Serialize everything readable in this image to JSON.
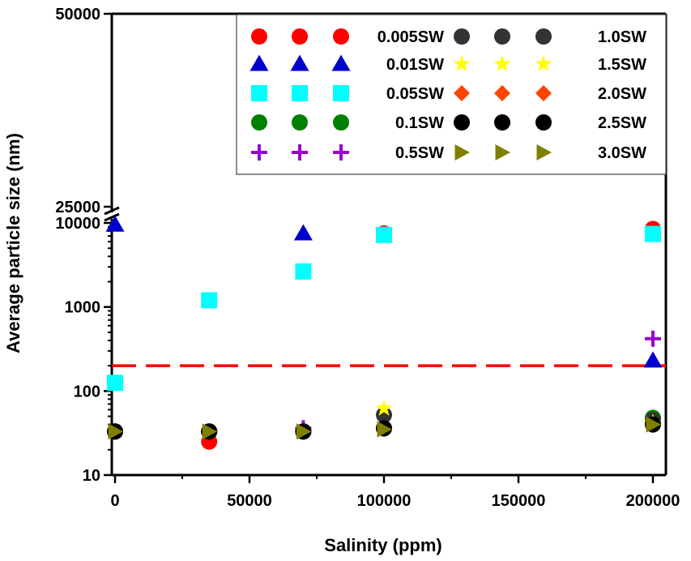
{
  "chart_data": {
    "type": "scatter",
    "xlabel": "Salinity (ppm)",
    "ylabel": "Average particle size (nm)",
    "x_ticks": [
      "0",
      "50000",
      "100000",
      "150000",
      "200000"
    ],
    "xlim": [
      0,
      200000
    ],
    "y_scale": "log with broken axis",
    "y_ticks_lower": [
      "10",
      "100",
      "1000",
      "10000"
    ],
    "y_ticks_upper": [
      "25000",
      "50000"
    ],
    "ylim_lower": [
      10,
      10000
    ],
    "ylim_upper": [
      25000,
      50000
    ],
    "reference_line": {
      "y": 200,
      "style": "dashed",
      "color": "#ff0000"
    },
    "grid": false,
    "legend_position": "top-right",
    "series": [
      {
        "name": "0.005SW",
        "marker": "circle",
        "color": "#ff0000",
        "points": [
          {
            "x": 35000,
            "y": 25
          },
          {
            "x": 100000,
            "y": 7500
          },
          {
            "x": 200000,
            "y": 8500
          }
        ]
      },
      {
        "name": "0.01SW",
        "marker": "triangle",
        "color": "#0000cc",
        "points": [
          {
            "x": 0,
            "y": 9500
          },
          {
            "x": 70000,
            "y": 7500
          },
          {
            "x": 200000,
            "y": 230
          }
        ]
      },
      {
        "name": "0.05SW",
        "marker": "square",
        "color": "#00ffff",
        "points": [
          {
            "x": 0,
            "y": 125
          },
          {
            "x": 35000,
            "y": 1200
          },
          {
            "x": 70000,
            "y": 2650
          },
          {
            "x": 100000,
            "y": 7200
          },
          {
            "x": 200000,
            "y": 7400
          }
        ]
      },
      {
        "name": "0.1SW",
        "marker": "circle",
        "color": "#008000",
        "points": [
          {
            "x": 0,
            "y": 33
          },
          {
            "x": 35000,
            "y": 33
          },
          {
            "x": 70000,
            "y": 33
          },
          {
            "x": 100000,
            "y": 36
          },
          {
            "x": 200000,
            "y": 48
          }
        ]
      },
      {
        "name": "0.5SW",
        "marker": "plus",
        "color": "#9900cc",
        "points": [
          {
            "x": 0,
            "y": 33
          },
          {
            "x": 35000,
            "y": 33
          },
          {
            "x": 70000,
            "y": 36
          },
          {
            "x": 100000,
            "y": 36
          },
          {
            "x": 200000,
            "y": 420
          }
        ]
      },
      {
        "name": "1.0SW",
        "marker": "circle",
        "color": "#333333",
        "points": [
          {
            "x": 0,
            "y": 33
          },
          {
            "x": 35000,
            "y": 33
          },
          {
            "x": 70000,
            "y": 33
          },
          {
            "x": 100000,
            "y": 52
          },
          {
            "x": 200000,
            "y": 45
          }
        ]
      },
      {
        "name": "1.5SW",
        "marker": "star",
        "color": "#ffff00",
        "points": [
          {
            "x": 0,
            "y": 33
          },
          {
            "x": 35000,
            "y": 33
          },
          {
            "x": 70000,
            "y": 33
          },
          {
            "x": 100000,
            "y": 62
          },
          {
            "x": 200000,
            "y": 42
          }
        ]
      },
      {
        "name": "2.0SW",
        "marker": "diamond",
        "color": "#ff4400",
        "points": [
          {
            "x": 0,
            "y": 33
          },
          {
            "x": 35000,
            "y": 33
          },
          {
            "x": 70000,
            "y": 33
          },
          {
            "x": 100000,
            "y": 36
          },
          {
            "x": 200000,
            "y": 40
          }
        ]
      },
      {
        "name": "2.5SW",
        "marker": "circle",
        "color": "#000000",
        "points": [
          {
            "x": 0,
            "y": 33
          },
          {
            "x": 35000,
            "y": 33
          },
          {
            "x": 70000,
            "y": 33
          },
          {
            "x": 100000,
            "y": 36
          },
          {
            "x": 200000,
            "y": 40
          }
        ]
      },
      {
        "name": "3.0SW",
        "marker": "triangle-right",
        "color": "#808000",
        "points": [
          {
            "x": 0,
            "y": 33
          },
          {
            "x": 35000,
            "y": 33
          },
          {
            "x": 70000,
            "y": 33
          },
          {
            "x": 100000,
            "y": 35
          },
          {
            "x": 200000,
            "y": 40
          }
        ]
      }
    ]
  }
}
